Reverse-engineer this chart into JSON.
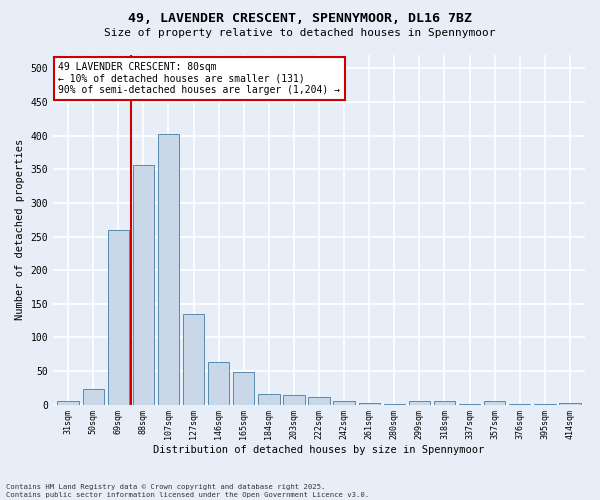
{
  "title_line1": "49, LAVENDER CRESCENT, SPENNYMOOR, DL16 7BZ",
  "title_line2": "Size of property relative to detached houses in Spennymoor",
  "xlabel": "Distribution of detached houses by size in Spennymoor",
  "ylabel": "Number of detached properties",
  "categories": [
    "31sqm",
    "50sqm",
    "69sqm",
    "88sqm",
    "107sqm",
    "127sqm",
    "146sqm",
    "165sqm",
    "184sqm",
    "203sqm",
    "222sqm",
    "242sqm",
    "261sqm",
    "280sqm",
    "299sqm",
    "318sqm",
    "337sqm",
    "357sqm",
    "376sqm",
    "395sqm",
    "414sqm"
  ],
  "values": [
    5,
    23,
    260,
    357,
    403,
    135,
    63,
    48,
    16,
    14,
    11,
    6,
    2,
    1,
    5,
    5,
    1,
    5,
    1,
    1,
    2
  ],
  "bar_color": "#c8d8e8",
  "bar_edge_color": "#5a8ab0",
  "background_color": "#e8eef8",
  "grid_color": "#ffffff",
  "vline_x": 2.5,
  "vline_color": "#cc0000",
  "annotation_text": "49 LAVENDER CRESCENT: 80sqm\n← 10% of detached houses are smaller (131)\n90% of semi-detached houses are larger (1,204) →",
  "annotation_box_color": "#ffffff",
  "annotation_box_edge": "#cc0000",
  "footnote_line1": "Contains HM Land Registry data © Crown copyright and database right 2025.",
  "footnote_line2": "Contains public sector information licensed under the Open Government Licence v3.0.",
  "ylim": [
    0,
    520
  ],
  "yticks": [
    0,
    50,
    100,
    150,
    200,
    250,
    300,
    350,
    400,
    450,
    500
  ]
}
